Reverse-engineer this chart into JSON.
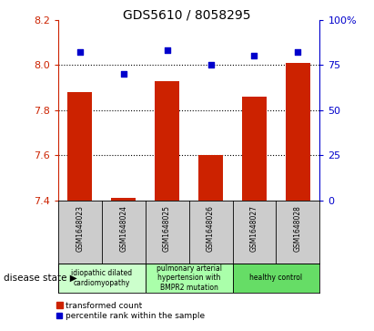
{
  "title": "GDS5610 / 8058295",
  "samples": [
    "GSM1648023",
    "GSM1648024",
    "GSM1648025",
    "GSM1648026",
    "GSM1648027",
    "GSM1648028"
  ],
  "transformed_count": [
    7.88,
    7.41,
    7.93,
    7.6,
    7.86,
    8.01
  ],
  "percentile_rank": [
    82,
    70,
    83,
    75,
    80,
    82
  ],
  "ylim_left": [
    7.4,
    8.2
  ],
  "ylim_right": [
    0,
    100
  ],
  "yticks_left": [
    7.4,
    7.6,
    7.8,
    8.0,
    8.2
  ],
  "yticks_right": [
    0,
    25,
    50,
    75,
    100
  ],
  "bar_color": "#cc2200",
  "scatter_color": "#0000cc",
  "disease_groups": [
    {
      "label": "idiopathic dilated\ncardiomyopathy",
      "samples": [
        0,
        1
      ],
      "color": "#ccffcc"
    },
    {
      "label": "pulmonary arterial\nhypertension with\nBMPR2 mutation",
      "samples": [
        2,
        3
      ],
      "color": "#aaffaa"
    },
    {
      "label": "healthy control",
      "samples": [
        4,
        5
      ],
      "color": "#66dd66"
    }
  ],
  "legend_bar_label": "transformed count",
  "legend_scatter_label": "percentile rank within the sample",
  "disease_state_label": "disease state",
  "tick_label_color_left": "#cc2200",
  "tick_label_color_right": "#0000cc",
  "bg_color_label": "#cccccc"
}
